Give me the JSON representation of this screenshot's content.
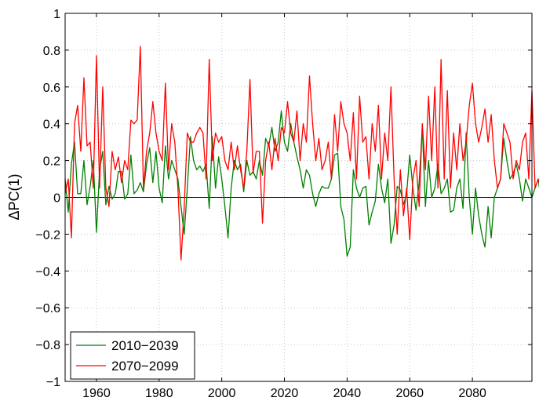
{
  "chart_data": {
    "type": "line",
    "ylabel": "ΔPC(1)",
    "xlim": [
      1950,
      2099
    ],
    "ylim": [
      -1,
      1
    ],
    "grid": true,
    "legend_position": "bottom-left",
    "x_ticks": [
      1960,
      1980,
      2000,
      2020,
      2040,
      2060,
      2080
    ],
    "x_tick_labels": [
      "1960",
      "1980",
      "2000",
      "2020",
      "2040",
      "2060",
      "2080"
    ],
    "y_ticks": [
      -1,
      -0.8,
      -0.6,
      -0.4,
      -0.2,
      0,
      0.2,
      0.4,
      0.6,
      0.8,
      1
    ],
    "y_tick_labels": [
      "−1",
      "−0.8",
      "−0.6",
      "−0.4",
      "−0.2",
      "0",
      "0.2",
      "0.4",
      "0.6",
      "0.8",
      "1"
    ],
    "reference_line_y": 0,
    "x_start": 1950,
    "series": [
      {
        "name": "2010−2039",
        "color": "#008000",
        "values": [
          0.1,
          -0.08,
          0.18,
          0.3,
          0.02,
          0.02,
          0.2,
          -0.04,
          0.06,
          0.2,
          -0.19,
          0.15,
          0.25,
          -0.04,
          0.06,
          -0.01,
          0.02,
          0.14,
          0.14,
          -0.01,
          0.02,
          0.23,
          0.02,
          0.04,
          0.08,
          0.03,
          0.18,
          0.27,
          0.08,
          0.25,
          0.05,
          -0.03,
          0.28,
          0.1,
          0.2,
          0.15,
          0.1,
          -0.05,
          -0.2,
          0.05,
          0.33,
          0.2,
          0.15,
          0.17,
          0.14,
          0.18,
          -0.06,
          0.33,
          0.05,
          0.22,
          0.1,
          -0.05,
          -0.22,
          0.05,
          0.2,
          0.15,
          0.18,
          0.03,
          0.2,
          0.12,
          0.14,
          0.1,
          0.2,
          0.12,
          0.32,
          0.28,
          0.38,
          0.25,
          0.3,
          0.47,
          0.3,
          0.25,
          0.4,
          0.3,
          0.22,
          0.15,
          0.05,
          0.15,
          0.12,
          0.02,
          -0.05,
          0.02,
          0.06,
          0.05,
          0.05,
          0.1,
          0.23,
          0.24,
          -0.05,
          -0.12,
          -0.32,
          -0.27,
          0.15,
          0.05,
          0.0,
          0.05,
          0.06,
          -0.15,
          -0.08,
          -0.02,
          0.18,
          0.05,
          -0.03,
          0.1,
          -0.25,
          -0.15,
          0.06,
          0.04,
          -0.04,
          0.02,
          0.23,
          0.05,
          -0.07,
          0.08,
          0.38,
          -0.05,
          0.2,
          0.0,
          0.05,
          0.18,
          0.02,
          0.05,
          0.1,
          -0.08,
          -0.07,
          0.05,
          0.1,
          -0.06,
          0.35,
          0.0,
          -0.2,
          0.05,
          -0.1,
          -0.2,
          -0.27,
          -0.05,
          -0.22,
          0.0,
          0.05,
          0.1,
          0.32,
          0.2,
          0.1,
          0.13,
          0.18,
          0.1,
          -0.02,
          0.1,
          0.05,
          0.0,
          0.05,
          0.1,
          -0.03,
          0.08,
          -0.17,
          0.22,
          0.18,
          0.1,
          0.0,
          0.1,
          0.05,
          -0.15
        ]
      },
      {
        "name": "2070−2099",
        "color": "#ff0000",
        "values": [
          0.02,
          0.1,
          -0.22,
          0.4,
          0.5,
          0.25,
          0.65,
          0.28,
          0.3,
          0.05,
          0.77,
          0.05,
          0.6,
          0.05,
          -0.05,
          0.25,
          0.15,
          0.22,
          0.08,
          0.2,
          0.15,
          0.42,
          0.4,
          0.42,
          0.82,
          0.05,
          0.25,
          0.35,
          0.52,
          0.35,
          0.25,
          0.2,
          0.62,
          0.15,
          0.4,
          0.3,
          0.05,
          -0.34,
          -0.06,
          0.35,
          0.3,
          0.3,
          0.35,
          0.38,
          0.35,
          0.1,
          0.75,
          0.2,
          0.35,
          0.3,
          0.33,
          0.2,
          0.15,
          0.3,
          0.15,
          0.28,
          0.15,
          0.05,
          0.25,
          0.64,
          0.13,
          0.25,
          0.25,
          -0.14,
          0.2,
          0.3,
          0.15,
          0.32,
          0.2,
          0.38,
          0.35,
          0.52,
          0.35,
          0.3,
          0.47,
          0.2,
          0.4,
          0.3,
          0.66,
          0.4,
          0.2,
          0.32,
          0.15,
          0.2,
          0.3,
          0.1,
          0.45,
          0.25,
          0.52,
          0.4,
          0.35,
          0.2,
          0.46,
          0.1,
          0.55,
          0.3,
          0.33,
          0.1,
          0.4,
          0.25,
          0.5,
          0.1,
          0.35,
          0.2,
          0.6,
          0.1,
          -0.2,
          0.15,
          -0.1,
          0.05,
          -0.23,
          0.1,
          0.2,
          -0.05,
          0.4,
          0.15,
          0.55,
          0.2,
          0.6,
          0.05,
          0.75,
          0.1,
          0.58,
          0.05,
          0.35,
          0.15,
          0.4,
          0.2,
          0.3,
          0.5,
          0.62,
          0.4,
          0.3,
          0.38,
          0.48,
          0.3,
          0.45,
          0.2,
          0.05,
          0.1,
          0.4,
          0.35,
          0.3,
          0.1,
          0.2,
          0.15,
          0.3,
          0.35,
          0.1,
          0.58,
          0.05,
          0.1,
          0.04,
          0.1,
          0.59,
          0.0,
          0.05,
          0.0,
          -0.02,
          0.05,
          0.3,
          0.38,
          0.01
        ]
      }
    ]
  }
}
